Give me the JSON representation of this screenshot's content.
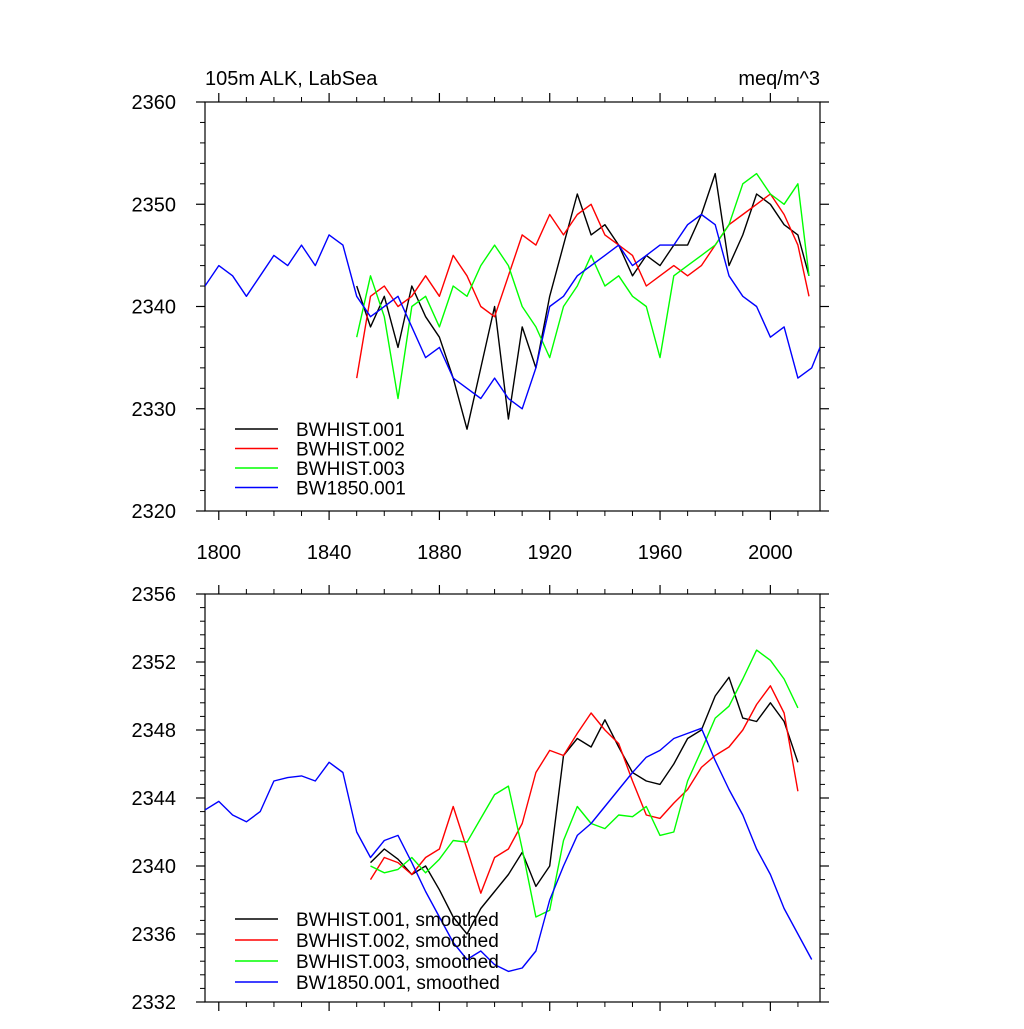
{
  "chart_data": [
    {
      "type": "line",
      "title_left": "105m ALK, LabSea",
      "title_right": "meq/m^3",
      "xlim": [
        1795,
        2018
      ],
      "ylim": [
        2320,
        2360
      ],
      "x_ticks": [
        1800,
        1840,
        1880,
        1920,
        1960,
        2000
      ],
      "y_ticks": [
        2320,
        2330,
        2340,
        2350,
        2360
      ],
      "legend_position": "bottom-left",
      "series": [
        {
          "name": "BWHIST.001",
          "color": "#000000",
          "x": [
            1850,
            1855,
            1860,
            1865,
            1870,
            1875,
            1880,
            1885,
            1890,
            1895,
            1900,
            1905,
            1910,
            1915,
            1920,
            1925,
            1930,
            1935,
            1940,
            1945,
            1950,
            1955,
            1960,
            1965,
            1970,
            1975,
            1980,
            1985,
            1990,
            1995,
            2000,
            2005,
            2010,
            2014
          ],
          "y": [
            2342,
            2338,
            2341,
            2336,
            2342,
            2339,
            2337,
            2333,
            2328,
            2334,
            2340,
            2329,
            2338,
            2334,
            2341,
            2346,
            2351,
            2347,
            2348,
            2346,
            2343,
            2345,
            2344,
            2346,
            2346,
            2349,
            2353,
            2344,
            2347,
            2351,
            2350,
            2348,
            2347,
            2343
          ]
        },
        {
          "name": "BWHIST.002",
          "color": "#ff0000",
          "x": [
            1850,
            1855,
            1860,
            1865,
            1870,
            1875,
            1880,
            1885,
            1890,
            1895,
            1900,
            1905,
            1910,
            1915,
            1920,
            1925,
            1930,
            1935,
            1940,
            1945,
            1950,
            1955,
            1960,
            1965,
            1970,
            1975,
            1980,
            1985,
            1990,
            1995,
            2000,
            2005,
            2010,
            2014
          ],
          "y": [
            2333,
            2341,
            2342,
            2340,
            2341,
            2343,
            2341,
            2345,
            2343,
            2340,
            2339,
            2343,
            2347,
            2346,
            2349,
            2347,
            2349,
            2350,
            2347,
            2346,
            2345,
            2342,
            2343,
            2344,
            2343,
            2344,
            2346,
            2348,
            2349,
            2350,
            2351,
            2349,
            2346,
            2341
          ]
        },
        {
          "name": "BWHIST.003",
          "color": "#00ff00",
          "x": [
            1850,
            1855,
            1860,
            1865,
            1870,
            1875,
            1880,
            1885,
            1890,
            1895,
            1900,
            1905,
            1910,
            1915,
            1920,
            1925,
            1930,
            1935,
            1940,
            1945,
            1950,
            1955,
            1960,
            1965,
            1970,
            1975,
            1980,
            1985,
            1990,
            1995,
            2000,
            2005,
            2010,
            2014
          ],
          "y": [
            2337,
            2343,
            2339,
            2331,
            2340,
            2341,
            2338,
            2342,
            2341,
            2344,
            2346,
            2344,
            2340,
            2338,
            2335,
            2340,
            2342,
            2345,
            2342,
            2343,
            2341,
            2340,
            2335,
            2343,
            2344,
            2345,
            2346,
            2348,
            2352,
            2353,
            2351,
            2350,
            2352,
            2343
          ]
        },
        {
          "name": "BW1850.001",
          "color": "#0000ff",
          "x": [
            1795,
            1800,
            1805,
            1810,
            1815,
            1820,
            1825,
            1830,
            1835,
            1840,
            1845,
            1850,
            1855,
            1860,
            1865,
            1870,
            1875,
            1880,
            1885,
            1890,
            1895,
            1900,
            1905,
            1910,
            1915,
            1920,
            1925,
            1930,
            1935,
            1940,
            1945,
            1950,
            1955,
            1960,
            1965,
            1970,
            1975,
            1980,
            1985,
            1990,
            1995,
            2000,
            2005,
            2010,
            2015,
            2018
          ],
          "y": [
            2342,
            2344,
            2343,
            2341,
            2343,
            2345,
            2344,
            2346,
            2344,
            2347,
            2346,
            2341,
            2339,
            2340,
            2341,
            2338,
            2335,
            2336,
            2333,
            2332,
            2331,
            2333,
            2331,
            2330,
            2334,
            2340,
            2341,
            2343,
            2344,
            2345,
            2346,
            2344,
            2345,
            2346,
            2346,
            2348,
            2349,
            2348,
            2343,
            2341,
            2340,
            2337,
            2338,
            2333,
            2334,
            2336
          ]
        }
      ]
    },
    {
      "type": "line",
      "title_left": "",
      "title_right": "",
      "xlim": [
        1795,
        2018
      ],
      "ylim": [
        2332,
        2356
      ],
      "x_ticks": [
        1800,
        1840,
        1880,
        1920,
        1960,
        2000
      ],
      "y_ticks": [
        2332,
        2336,
        2340,
        2344,
        2348,
        2352,
        2356
      ],
      "legend_position": "bottom-left",
      "series": [
        {
          "name": "BWHIST.001, smoothed",
          "color": "#000000",
          "x": [
            1855,
            1860,
            1865,
            1870,
            1875,
            1880,
            1885,
            1890,
            1895,
            1900,
            1905,
            1910,
            1915,
            1920,
            1925,
            1930,
            1935,
            1940,
            1945,
            1950,
            1955,
            1960,
            1965,
            1970,
            1975,
            1980,
            1985,
            1990,
            1995,
            2000,
            2005,
            2010
          ],
          "y": [
            2340.2,
            2341.0,
            2340.4,
            2339.5,
            2340.0,
            2338.6,
            2337.0,
            2336.0,
            2337.5,
            2338.5,
            2339.5,
            2340.8,
            2338.8,
            2340.0,
            2346.5,
            2347.5,
            2347.0,
            2348.6,
            2347.0,
            2345.5,
            2345.0,
            2344.8,
            2346.0,
            2347.5,
            2348.0,
            2350.0,
            2351.1,
            2348.7,
            2348.5,
            2349.6,
            2348.5,
            2346.1
          ]
        },
        {
          "name": "BWHIST.002, smoothed",
          "color": "#ff0000",
          "x": [
            1855,
            1860,
            1865,
            1870,
            1875,
            1880,
            1885,
            1890,
            1895,
            1900,
            1905,
            1910,
            1915,
            1920,
            1925,
            1930,
            1935,
            1940,
            1945,
            1950,
            1955,
            1960,
            1965,
            1970,
            1975,
            1980,
            1985,
            1990,
            1995,
            2000,
            2005,
            2010
          ],
          "y": [
            2339.2,
            2340.5,
            2340.2,
            2339.5,
            2340.5,
            2341.0,
            2343.5,
            2341.0,
            2338.4,
            2340.5,
            2341.0,
            2342.5,
            2345.5,
            2346.8,
            2346.5,
            2347.8,
            2349.0,
            2348.0,
            2347.2,
            2345.0,
            2343.0,
            2342.8,
            2343.7,
            2344.5,
            2345.8,
            2346.5,
            2347.0,
            2348.0,
            2349.5,
            2350.6,
            2349.0,
            2344.4
          ]
        },
        {
          "name": "BWHIST.003, smoothed",
          "color": "#00ff00",
          "x": [
            1855,
            1860,
            1865,
            1870,
            1875,
            1880,
            1885,
            1890,
            1895,
            1900,
            1905,
            1910,
            1915,
            1920,
            1925,
            1930,
            1935,
            1940,
            1945,
            1950,
            1955,
            1960,
            1965,
            1970,
            1975,
            1980,
            1985,
            1990,
            1995,
            2000,
            2005,
            2010
          ],
          "y": [
            2340.0,
            2339.6,
            2339.8,
            2340.5,
            2339.6,
            2340.4,
            2341.5,
            2341.4,
            2342.8,
            2344.2,
            2344.7,
            2341.0,
            2337.0,
            2337.4,
            2341.5,
            2343.5,
            2342.5,
            2342.2,
            2343.0,
            2342.9,
            2343.5,
            2341.8,
            2342.0,
            2345.0,
            2346.8,
            2348.7,
            2349.4,
            2351.0,
            2352.7,
            2352.1,
            2351.0,
            2349.3
          ]
        },
        {
          "name": "BW1850.001, smoothed",
          "color": "#0000ff",
          "x": [
            1795,
            1800,
            1805,
            1810,
            1815,
            1820,
            1825,
            1830,
            1835,
            1840,
            1845,
            1850,
            1855,
            1860,
            1865,
            1870,
            1875,
            1880,
            1885,
            1890,
            1895,
            1900,
            1905,
            1910,
            1915,
            1920,
            1925,
            1930,
            1935,
            1940,
            1945,
            1950,
            1955,
            1960,
            1965,
            1970,
            1975,
            1980,
            1985,
            1990,
            1995,
            2000,
            2005,
            2010,
            2015
          ],
          "y": [
            2343.3,
            2343.8,
            2343.0,
            2342.6,
            2343.2,
            2345.0,
            2345.2,
            2345.3,
            2345.0,
            2346.1,
            2345.5,
            2342.0,
            2340.5,
            2341.5,
            2341.8,
            2340.2,
            2338.5,
            2337.0,
            2335.5,
            2334.5,
            2335.0,
            2334.2,
            2333.8,
            2334.0,
            2335.0,
            2338.0,
            2340.0,
            2341.8,
            2342.5,
            2343.5,
            2344.5,
            2345.5,
            2346.4,
            2346.8,
            2347.5,
            2347.8,
            2348.1,
            2346.2,
            2344.5,
            2343.0,
            2341.0,
            2339.5,
            2337.5,
            2336.0,
            2334.5
          ]
        }
      ]
    }
  ]
}
